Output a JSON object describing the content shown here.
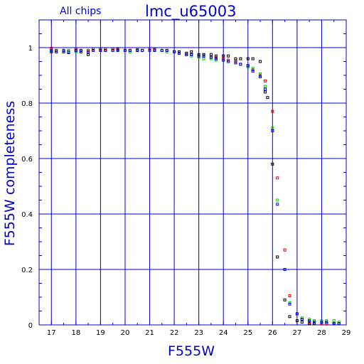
{
  "chart_data": {
    "type": "scatter",
    "title": "lmc_u65003",
    "subtitle": "All chips",
    "xlabel": "F555W",
    "ylabel": "F555W completeness",
    "xlim": [
      16.5,
      29
    ],
    "ylim": [
      0,
      1.1
    ],
    "grid": true,
    "x_ticks": [
      "17",
      "18",
      "19",
      "20",
      "21",
      "22",
      "23",
      "24",
      "25",
      "26",
      "27",
      "28",
      "29"
    ],
    "y_ticks": [
      "0",
      "0.2",
      "0.4",
      "0.6",
      "0.8",
      "1"
    ],
    "colors": {
      "axes": "#0000cc",
      "black": "#000000",
      "red": "#e00000",
      "green": "#00cc00",
      "blue": "#0000ff"
    },
    "series": [
      {
        "color": "#000000",
        "x": [
          17.0,
          17.2,
          17.5,
          17.7,
          18.0,
          18.2,
          18.5,
          18.7,
          19.0,
          19.2,
          19.5,
          19.7,
          20.0,
          20.2,
          20.5,
          20.7,
          21.0,
          21.2,
          21.5,
          21.7,
          22.0,
          22.2,
          22.5,
          22.7,
          23.0,
          23.2,
          23.5,
          23.7,
          24.0,
          24.2,
          24.5,
          24.7,
          25.0,
          25.2,
          25.5,
          25.7,
          25.8,
          26.0,
          26.2,
          26.5,
          26.7,
          27.0,
          27.2,
          27.5,
          27.7,
          28.0,
          28.2,
          28.5,
          28.7
        ],
        "y": [
          0.985,
          0.99,
          0.985,
          0.982,
          0.99,
          0.985,
          0.975,
          0.99,
          0.99,
          0.99,
          0.995,
          0.995,
          0.99,
          0.99,
          0.992,
          0.99,
          0.995,
          0.993,
          0.99,
          0.99,
          0.985,
          0.985,
          0.98,
          0.985,
          0.975,
          0.975,
          0.975,
          0.97,
          0.97,
          0.97,
          0.96,
          0.96,
          0.96,
          0.96,
          0.95,
          0.84,
          0.82,
          0.58,
          0.245,
          0.09,
          0.03,
          0.015,
          0.01,
          0.005,
          0.0,
          0.0,
          0.0,
          0.0,
          0.0
        ]
      },
      {
        "color": "#e00000",
        "x": [
          17.0,
          17.2,
          17.5,
          17.7,
          18.0,
          18.2,
          18.5,
          18.7,
          19.0,
          19.2,
          19.5,
          19.7,
          20.0,
          20.2,
          20.5,
          20.7,
          21.0,
          21.2,
          21.5,
          21.7,
          22.0,
          22.2,
          22.5,
          22.7,
          23.0,
          23.2,
          23.5,
          23.7,
          24.0,
          24.2,
          24.5,
          24.7,
          25.0,
          25.2,
          25.5,
          25.7,
          26.0,
          26.2,
          26.5,
          26.7,
          27.0,
          27.2,
          27.5,
          27.7,
          28.0,
          28.2,
          28.5,
          28.7
        ],
        "y": [
          0.998,
          0.99,
          0.99,
          0.99,
          0.995,
          0.99,
          0.99,
          0.995,
          0.995,
          0.995,
          0.995,
          0.993,
          0.99,
          0.99,
          0.99,
          0.99,
          0.995,
          0.993,
          0.99,
          0.99,
          0.985,
          0.98,
          0.975,
          0.975,
          0.97,
          0.97,
          0.965,
          0.965,
          0.965,
          0.955,
          0.95,
          0.94,
          0.935,
          0.92,
          0.9,
          0.88,
          0.77,
          0.53,
          0.27,
          0.105,
          0.04,
          0.02,
          0.01,
          0.01,
          0.005,
          0.0,
          0.0,
          0.0
        ]
      },
      {
        "color": "#00cc00",
        "x": [
          17.0,
          17.2,
          17.5,
          17.7,
          18.0,
          18.2,
          18.5,
          18.7,
          19.0,
          19.2,
          19.5,
          19.7,
          20.0,
          20.2,
          20.5,
          20.7,
          21.0,
          21.2,
          21.5,
          21.7,
          22.0,
          22.2,
          22.5,
          22.7,
          23.0,
          23.2,
          23.5,
          23.7,
          24.0,
          24.2,
          24.5,
          24.7,
          25.0,
          25.2,
          25.5,
          25.7,
          26.0,
          26.2,
          26.5,
          26.7,
          27.0,
          27.2,
          27.5,
          27.7,
          28.0,
          28.2,
          28.5,
          28.7
        ],
        "y": [
          0.99,
          0.985,
          0.99,
          0.99,
          0.985,
          0.99,
          0.985,
          0.99,
          0.99,
          0.99,
          0.99,
          0.99,
          0.99,
          0.985,
          0.99,
          0.99,
          0.99,
          0.99,
          0.99,
          0.985,
          0.985,
          0.98,
          0.975,
          0.97,
          0.965,
          0.96,
          0.96,
          0.955,
          0.955,
          0.95,
          0.945,
          0.94,
          0.93,
          0.925,
          0.905,
          0.86,
          0.71,
          0.45,
          0.2,
          0.08,
          0.04,
          0.025,
          0.02,
          0.015,
          0.015,
          0.015,
          0.015,
          0.01
        ]
      },
      {
        "color": "#0000ff",
        "x": [
          17.0,
          17.2,
          17.5,
          17.7,
          18.0,
          18.2,
          18.5,
          18.7,
          19.0,
          19.2,
          19.5,
          19.7,
          20.0,
          20.2,
          20.5,
          20.7,
          21.0,
          21.2,
          21.5,
          21.7,
          22.0,
          22.2,
          22.5,
          22.7,
          23.0,
          23.2,
          23.5,
          23.7,
          24.0,
          24.2,
          24.5,
          24.7,
          25.0,
          25.2,
          25.5,
          25.7,
          26.0,
          26.2,
          26.5,
          26.7,
          27.0,
          27.2,
          27.5,
          27.7,
          28.0,
          28.2,
          28.5,
          28.7
        ],
        "y": [
          0.99,
          0.985,
          0.99,
          0.985,
          0.99,
          0.99,
          0.985,
          0.99,
          0.99,
          0.99,
          0.99,
          0.99,
          0.99,
          0.99,
          0.99,
          0.99,
          0.99,
          0.99,
          0.99,
          0.99,
          0.985,
          0.98,
          0.975,
          0.975,
          0.97,
          0.97,
          0.965,
          0.96,
          0.955,
          0.95,
          0.945,
          0.94,
          0.935,
          0.915,
          0.895,
          0.85,
          0.7,
          0.435,
          0.2,
          0.075,
          0.04,
          0.02,
          0.015,
          0.01,
          0.01,
          0.01,
          0.005,
          0.005
        ]
      }
    ]
  }
}
